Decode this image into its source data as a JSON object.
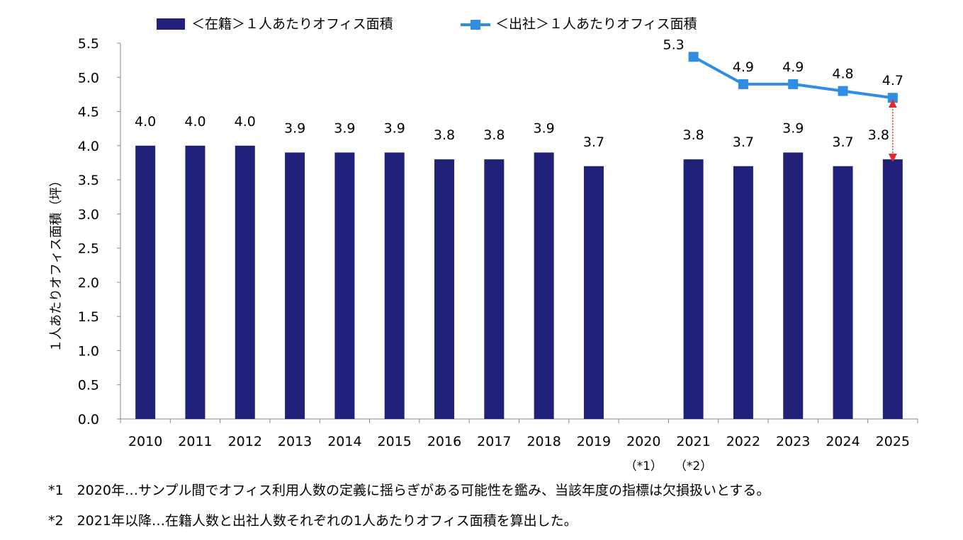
{
  "chart_data": {
    "type": "bar",
    "ylabel": "１人あたりオフィス面積（坪）",
    "ylim": [
      0,
      5.5
    ],
    "yticks": [
      "0.0",
      "0.5",
      "1.0",
      "1.5",
      "2.0",
      "2.5",
      "3.0",
      "3.5",
      "4.0",
      "4.5",
      "5.0",
      "5.5"
    ],
    "grid": false,
    "legend_position": "top",
    "categories": [
      "2010",
      "2011",
      "2012",
      "2013",
      "2014",
      "2015",
      "2016",
      "2017",
      "2018",
      "2019",
      "2020",
      "2021",
      "2022",
      "2023",
      "2024",
      "2025"
    ],
    "category_notes": [
      "",
      "",
      "",
      "",
      "",
      "",
      "",
      "",
      "",
      "",
      "（*1）",
      "（*2）",
      "",
      "",
      "",
      ""
    ],
    "series": [
      {
        "name": "＜在籍＞１人あたりオフィス面積",
        "kind": "bar",
        "color": "#1f2278",
        "values": [
          4.0,
          4.0,
          4.0,
          3.9,
          3.9,
          3.9,
          3.8,
          3.8,
          3.9,
          3.7,
          null,
          3.8,
          3.7,
          3.9,
          3.7,
          3.8
        ],
        "labels": [
          "4.0",
          "4.0",
          "4.0",
          "3.9",
          "3.9",
          "3.9",
          "3.8",
          "3.8",
          "3.9",
          "3.7",
          "",
          "3.8",
          "3.7",
          "3.9",
          "3.7",
          "3.8"
        ]
      },
      {
        "name": "＜出社＞１人あたりオフィス面積",
        "kind": "line",
        "color": "#2f8de4",
        "values": [
          null,
          null,
          null,
          null,
          null,
          null,
          null,
          null,
          null,
          null,
          null,
          5.3,
          4.9,
          4.9,
          4.8,
          4.7
        ],
        "labels": [
          "",
          "",
          "",
          "",
          "",
          "",
          "",
          "",
          "",
          "",
          "",
          "5.3",
          "4.9",
          "4.9",
          "4.8",
          "4.7"
        ]
      }
    ],
    "annotation": {
      "type": "double-arrow",
      "category": "2025",
      "from": 3.8,
      "to": 4.7,
      "color": "#e8262a"
    }
  },
  "notes": [
    "*1　2020年…サンプル間でオフィス利用人数の定義に揺らぎがある可能性を鑑み、当該年度の指標は欠損扱いとする。",
    "*2　2021年以降…在籍人数と出社人数それぞれの1人あたりオフィス面積を算出した。"
  ]
}
